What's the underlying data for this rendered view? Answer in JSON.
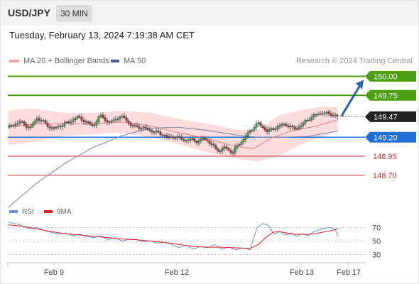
{
  "header": {
    "symbol": "USD/JPY",
    "timeframe": "30 MIN"
  },
  "timestamp": "Tuesday, February 13, 2024 7:19:38 AM CET",
  "legend": [
    {
      "label": "MA 20 + Bollinger Bands",
      "color": "#f4a6a6"
    },
    {
      "label": "MA 50",
      "color": "#3b5b9a"
    }
  ],
  "credit": "Research © 2024 Trading Central",
  "rsi_legend": [
    {
      "label": "RSI",
      "color": "#6f8fd6"
    },
    {
      "label": "9MA",
      "color": "#e02020"
    }
  ],
  "colors": {
    "green": "#4aa010",
    "red": "#d03030",
    "blue": "#1f6fd6",
    "dark": "#222222",
    "arrow": "#2f62a8"
  },
  "chart_data": [
    {
      "type": "candlestick",
      "title": "USD/JPY 30 MIN",
      "y_range": [
        148.25,
        150.06
      ],
      "x_ticks": [
        "Feb 9",
        "Feb 12",
        "Feb 13",
        "Feb 17"
      ],
      "levels": [
        {
          "label": "150.00",
          "value": 150.0,
          "style": "resistance",
          "color": "#4aa010"
        },
        {
          "label": "149.75",
          "value": 149.75,
          "style": "resistance",
          "color": "#4aa010"
        },
        {
          "label": "149.47",
          "value": 149.47,
          "style": "last price",
          "color": "#222222"
        },
        {
          "label": "149.20",
          "value": 149.2,
          "style": "pivot",
          "color": "#1f6fd6"
        },
        {
          "label": "148.95",
          "value": 148.95,
          "style": "support",
          "color": "#d03030"
        },
        {
          "label": "148.70",
          "value": 148.7,
          "style": "support",
          "color": "#d03030"
        }
      ],
      "arrow": {
        "from": 149.47,
        "to": 150.0
      },
      "close_path": [
        [
          0,
          149.33
        ],
        [
          8,
          149.37
        ],
        [
          16,
          149.4
        ],
        [
          24,
          149.36
        ],
        [
          30,
          149.31
        ],
        [
          35,
          149.39
        ],
        [
          40,
          149.45
        ],
        [
          46,
          149.42
        ],
        [
          52,
          149.38
        ],
        [
          58,
          149.33
        ],
        [
          64,
          149.31
        ],
        [
          72,
          149.35
        ],
        [
          80,
          149.38
        ],
        [
          88,
          149.41
        ],
        [
          96,
          149.47
        ],
        [
          104,
          149.43
        ],
        [
          112,
          149.38
        ],
        [
          120,
          149.35
        ],
        [
          128,
          149.48
        ],
        [
          134,
          149.46
        ],
        [
          140,
          149.39
        ],
        [
          148,
          149.42
        ],
        [
          156,
          149.47
        ],
        [
          164,
          149.45
        ],
        [
          172,
          149.36
        ],
        [
          178,
          149.34
        ],
        [
          186,
          149.33
        ],
        [
          194,
          149.31
        ],
        [
          202,
          149.28
        ],
        [
          210,
          149.26
        ],
        [
          218,
          149.23
        ],
        [
          226,
          149.19
        ],
        [
          234,
          149.21
        ],
        [
          242,
          149.18
        ],
        [
          250,
          149.16
        ],
        [
          258,
          149.17
        ],
        [
          266,
          149.14
        ],
        [
          274,
          149.18
        ],
        [
          280,
          149.16
        ],
        [
          286,
          149.1
        ],
        [
          292,
          149.05
        ],
        [
          298,
          149.02
        ],
        [
          304,
          149.07
        ],
        [
          310,
          149.03
        ],
        [
          316,
          149.0
        ],
        [
          322,
          149.09
        ],
        [
          330,
          149.16
        ],
        [
          338,
          149.26
        ],
        [
          346,
          149.34
        ],
        [
          352,
          149.38
        ],
        [
          358,
          149.33
        ],
        [
          364,
          149.28
        ],
        [
          370,
          149.3
        ],
        [
          378,
          149.33
        ],
        [
          386,
          149.37
        ],
        [
          394,
          149.35
        ],
        [
          402,
          149.31
        ],
        [
          410,
          149.34
        ],
        [
          418,
          149.41
        ],
        [
          426,
          149.46
        ],
        [
          434,
          149.5
        ],
        [
          442,
          149.52
        ],
        [
          450,
          149.51
        ],
        [
          458,
          149.49
        ],
        [
          464,
          149.47
        ]
      ],
      "ma20_path": [
        [
          0,
          149.34
        ],
        [
          40,
          149.37
        ],
        [
          80,
          149.38
        ],
        [
          120,
          149.38
        ],
        [
          160,
          149.4
        ],
        [
          200,
          149.35
        ],
        [
          240,
          149.26
        ],
        [
          280,
          149.18
        ],
        [
          320,
          149.08
        ],
        [
          345,
          149.05
        ],
        [
          370,
          149.19
        ],
        [
          400,
          149.29
        ],
        [
          430,
          149.34
        ],
        [
          464,
          149.43
        ]
      ],
      "bb_upper_path": [
        [
          0,
          149.55
        ],
        [
          30,
          149.58
        ],
        [
          80,
          149.52
        ],
        [
          120,
          149.52
        ],
        [
          160,
          149.55
        ],
        [
          200,
          149.52
        ],
        [
          240,
          149.44
        ],
        [
          280,
          149.38
        ],
        [
          320,
          149.3
        ],
        [
          350,
          149.29
        ],
        [
          380,
          149.48
        ],
        [
          410,
          149.55
        ],
        [
          440,
          149.6
        ],
        [
          464,
          149.6
        ]
      ],
      "bb_lower_path": [
        [
          0,
          149.1
        ],
        [
          30,
          149.13
        ],
        [
          80,
          149.22
        ],
        [
          120,
          149.24
        ],
        [
          160,
          149.26
        ],
        [
          200,
          149.2
        ],
        [
          240,
          149.11
        ],
        [
          280,
          149.0
        ],
        [
          320,
          148.92
        ],
        [
          350,
          148.88
        ],
        [
          380,
          148.95
        ],
        [
          410,
          149.1
        ],
        [
          440,
          149.2
        ],
        [
          464,
          149.28
        ]
      ],
      "ma50_path": [
        [
          0,
          148.28
        ],
        [
          40,
          148.6
        ],
        [
          80,
          148.86
        ],
        [
          120,
          149.07
        ],
        [
          160,
          149.22
        ],
        [
          200,
          149.32
        ],
        [
          240,
          149.33
        ],
        [
          280,
          149.29
        ],
        [
          320,
          149.23
        ],
        [
          350,
          149.2
        ],
        [
          380,
          149.2
        ],
        [
          420,
          149.21
        ],
        [
          464,
          149.28
        ]
      ]
    },
    {
      "type": "line",
      "title": "RSI",
      "y_ticks": [
        "70",
        "50",
        "30"
      ],
      "y_range": [
        15,
        90
      ],
      "series": [
        {
          "name": "RSI",
          "color": "#6f8fd6",
          "values": [
            [
              0,
              78
            ],
            [
              8,
              76
            ],
            [
              16,
              74
            ],
            [
              24,
              70
            ],
            [
              32,
              68
            ],
            [
              40,
              70
            ],
            [
              50,
              66
            ],
            [
              60,
              63
            ],
            [
              70,
              60
            ],
            [
              80,
              62
            ],
            [
              90,
              58
            ],
            [
              100,
              60
            ],
            [
              110,
              57
            ],
            [
              120,
              55
            ],
            [
              130,
              58
            ],
            [
              140,
              52
            ],
            [
              150,
              55
            ],
            [
              160,
              50
            ],
            [
              170,
              53
            ],
            [
              180,
              52
            ],
            [
              190,
              49
            ],
            [
              200,
              50
            ],
            [
              210,
              47
            ],
            [
              220,
              48
            ],
            [
              230,
              45
            ],
            [
              240,
              40
            ],
            [
              250,
              44
            ],
            [
              260,
              38
            ],
            [
              270,
              42
            ],
            [
              280,
              40
            ],
            [
              290,
              45
            ],
            [
              300,
              38
            ],
            [
              310,
              41
            ],
            [
              320,
              37
            ],
            [
              330,
              40
            ],
            [
              340,
              37
            ],
            [
              350,
              70
            ],
            [
              358,
              76
            ],
            [
              366,
              73
            ],
            [
              374,
              60
            ],
            [
              382,
              64
            ],
            [
              390,
              59
            ],
            [
              398,
              62
            ],
            [
              406,
              57
            ],
            [
              414,
              61
            ],
            [
              422,
              58
            ],
            [
              430,
              64
            ],
            [
              438,
              67
            ],
            [
              446,
              69
            ],
            [
              454,
              70
            ],
            [
              460,
              67
            ],
            [
              464,
              58
            ]
          ]
        },
        {
          "name": "9MA",
          "color": "#e02020",
          "values": [
            [
              0,
              74
            ],
            [
              20,
              72
            ],
            [
              40,
              68
            ],
            [
              60,
              64
            ],
            [
              80,
              61
            ],
            [
              100,
              59
            ],
            [
              120,
              57
            ],
            [
              140,
              55
            ],
            [
              160,
              53
            ],
            [
              180,
              52
            ],
            [
              200,
              50
            ],
            [
              220,
              48
            ],
            [
              240,
              45
            ],
            [
              260,
              42
            ],
            [
              280,
              41
            ],
            [
              300,
              41
            ],
            [
              320,
              40
            ],
            [
              340,
              39
            ],
            [
              352,
              45
            ],
            [
              362,
              55
            ],
            [
              372,
              63
            ],
            [
              382,
              64
            ],
            [
              392,
              62
            ],
            [
              402,
              60
            ],
            [
              412,
              60
            ],
            [
              422,
              60
            ],
            [
              432,
              61
            ],
            [
              442,
              63
            ],
            [
              452,
              65
            ],
            [
              464,
              68
            ]
          ]
        }
      ]
    }
  ]
}
